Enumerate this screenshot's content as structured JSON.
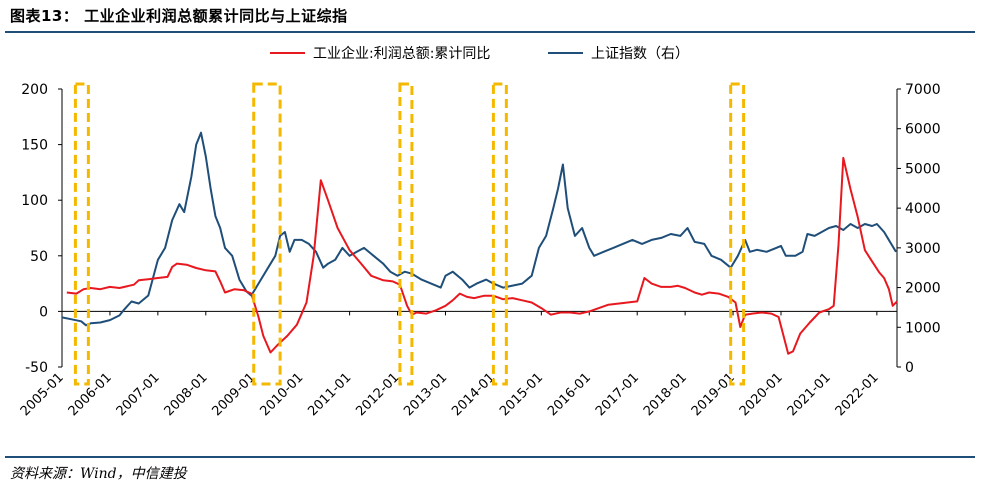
{
  "title": "图表13：  工业企业利润总额累计同比与上证综指",
  "source": "资料来源：Wind，中信建投",
  "chart_data": {
    "type": "line",
    "legend": [
      "工业企业:利润总额:累计同比",
      "上证指数（右）"
    ],
    "legend_position": "top",
    "y_left": {
      "min": -50,
      "max": 200,
      "ticks": [
        -50,
        0,
        50,
        100,
        150,
        200
      ]
    },
    "y_right": {
      "min": 0,
      "max": 7000,
      "ticks": [
        0,
        1000,
        2000,
        3000,
        4000,
        5000,
        6000,
        7000
      ]
    },
    "x_ticks": [
      "2005-01",
      "2006-01",
      "2007-01",
      "2008-01",
      "2009-01",
      "2010-01",
      "2011-01",
      "2012-01",
      "2013-01",
      "2014-01",
      "2015-01",
      "2016-01",
      "2017-01",
      "2018-01",
      "2019-01",
      "2020-01",
      "2021-01",
      "2022-01"
    ],
    "x_range": [
      2005.0,
      2022.42
    ],
    "colors": {
      "profit": "#e8181f",
      "index": "#1f4e79",
      "highlight": "#f5b800"
    },
    "series": [
      {
        "name": "工业企业:利润总额:累计同比",
        "axis": "left",
        "points": [
          [
            2005.1,
            17
          ],
          [
            2005.3,
            16
          ],
          [
            2005.45,
            20
          ],
          [
            2005.6,
            21
          ],
          [
            2005.8,
            20
          ],
          [
            2006.0,
            22
          ],
          [
            2006.2,
            21
          ],
          [
            2006.5,
            24
          ],
          [
            2006.6,
            28
          ],
          [
            2006.8,
            29
          ],
          [
            2007.0,
            30
          ],
          [
            2007.2,
            31
          ],
          [
            2007.3,
            40
          ],
          [
            2007.4,
            43
          ],
          [
            2007.6,
            42
          ],
          [
            2007.8,
            39
          ],
          [
            2008.0,
            37
          ],
          [
            2008.2,
            36
          ],
          [
            2008.3,
            27
          ],
          [
            2008.4,
            17
          ],
          [
            2008.6,
            20
          ],
          [
            2008.8,
            19
          ],
          [
            2008.95,
            16
          ],
          [
            2009.1,
            -5
          ],
          [
            2009.2,
            -22
          ],
          [
            2009.35,
            -37
          ],
          [
            2009.5,
            -30
          ],
          [
            2009.7,
            -22
          ],
          [
            2009.9,
            -12
          ],
          [
            2010.1,
            8
          ],
          [
            2010.25,
            50
          ],
          [
            2010.4,
            118
          ],
          [
            2010.55,
            100
          ],
          [
            2010.75,
            75
          ],
          [
            2011.0,
            55
          ],
          [
            2011.2,
            45
          ],
          [
            2011.45,
            32
          ],
          [
            2011.7,
            28
          ],
          [
            2011.9,
            27
          ],
          [
            2012.05,
            24
          ],
          [
            2012.2,
            5
          ],
          [
            2012.3,
            -3
          ],
          [
            2012.4,
            -1
          ],
          [
            2012.6,
            -2
          ],
          [
            2012.8,
            1
          ],
          [
            2013.0,
            5
          ],
          [
            2013.15,
            10
          ],
          [
            2013.3,
            16
          ],
          [
            2013.45,
            13
          ],
          [
            2013.6,
            12
          ],
          [
            2013.8,
            14
          ],
          [
            2014.0,
            14
          ],
          [
            2014.2,
            11
          ],
          [
            2014.4,
            12
          ],
          [
            2014.6,
            10
          ],
          [
            2014.8,
            8
          ],
          [
            2015.0,
            3
          ],
          [
            2015.2,
            -3
          ],
          [
            2015.4,
            -1
          ],
          [
            2015.6,
            -1
          ],
          [
            2015.8,
            -2
          ],
          [
            2016.0,
            0
          ],
          [
            2016.2,
            3
          ],
          [
            2016.4,
            6
          ],
          [
            2016.6,
            7
          ],
          [
            2016.8,
            8
          ],
          [
            2017.0,
            9
          ],
          [
            2017.15,
            30
          ],
          [
            2017.3,
            25
          ],
          [
            2017.5,
            22
          ],
          [
            2017.7,
            22
          ],
          [
            2017.85,
            23
          ],
          [
            2018.0,
            21
          ],
          [
            2018.2,
            17
          ],
          [
            2018.35,
            15
          ],
          [
            2018.5,
            17
          ],
          [
            2018.7,
            16
          ],
          [
            2018.9,
            13
          ],
          [
            2019.05,
            8
          ],
          [
            2019.15,
            -14
          ],
          [
            2019.25,
            -3
          ],
          [
            2019.4,
            -2
          ],
          [
            2019.6,
            -1
          ],
          [
            2019.8,
            -2
          ],
          [
            2019.95,
            -5
          ],
          [
            2020.15,
            -38
          ],
          [
            2020.25,
            -36
          ],
          [
            2020.4,
            -20
          ],
          [
            2020.6,
            -10
          ],
          [
            2020.8,
            -1
          ],
          [
            2021.0,
            2
          ],
          [
            2021.1,
            5
          ],
          [
            2021.2,
            60
          ],
          [
            2021.3,
            138
          ],
          [
            2021.45,
            110
          ],
          [
            2021.6,
            85
          ],
          [
            2021.75,
            55
          ],
          [
            2021.9,
            45
          ],
          [
            2022.05,
            35
          ],
          [
            2022.15,
            30
          ],
          [
            2022.25,
            20
          ],
          [
            2022.33,
            5
          ],
          [
            2022.42,
            9
          ]
        ]
      },
      {
        "name": "上证指数（右）",
        "axis": "right",
        "points": [
          [
            2005.0,
            1250
          ],
          [
            2005.2,
            1200
          ],
          [
            2005.4,
            1150
          ],
          [
            2005.5,
            1050
          ],
          [
            2005.6,
            1100
          ],
          [
            2005.8,
            1120
          ],
          [
            2006.0,
            1180
          ],
          [
            2006.2,
            1300
          ],
          [
            2006.3,
            1450
          ],
          [
            2006.45,
            1650
          ],
          [
            2006.6,
            1600
          ],
          [
            2006.8,
            1800
          ],
          [
            2007.0,
            2700
          ],
          [
            2007.15,
            3000
          ],
          [
            2007.3,
            3700
          ],
          [
            2007.45,
            4100
          ],
          [
            2007.55,
            3900
          ],
          [
            2007.7,
            4800
          ],
          [
            2007.8,
            5600
          ],
          [
            2007.9,
            5900
          ],
          [
            2008.0,
            5300
          ],
          [
            2008.1,
            4500
          ],
          [
            2008.2,
            3800
          ],
          [
            2008.3,
            3500
          ],
          [
            2008.4,
            3000
          ],
          [
            2008.55,
            2800
          ],
          [
            2008.7,
            2200
          ],
          [
            2008.85,
            1900
          ],
          [
            2008.95,
            1800
          ],
          [
            2009.15,
            2200
          ],
          [
            2009.3,
            2500
          ],
          [
            2009.45,
            2800
          ],
          [
            2009.55,
            3300
          ],
          [
            2009.65,
            3400
          ],
          [
            2009.75,
            2900
          ],
          [
            2009.85,
            3200
          ],
          [
            2010.0,
            3200
          ],
          [
            2010.15,
            3100
          ],
          [
            2010.3,
            2900
          ],
          [
            2010.45,
            2500
          ],
          [
            2010.55,
            2600
          ],
          [
            2010.7,
            2700
          ],
          [
            2010.85,
            3000
          ],
          [
            2011.0,
            2800
          ],
          [
            2011.15,
            2900
          ],
          [
            2011.3,
            3000
          ],
          [
            2011.5,
            2800
          ],
          [
            2011.7,
            2600
          ],
          [
            2011.85,
            2400
          ],
          [
            2012.0,
            2300
          ],
          [
            2012.15,
            2400
          ],
          [
            2012.3,
            2350
          ],
          [
            2012.5,
            2200
          ],
          [
            2012.7,
            2100
          ],
          [
            2012.9,
            2000
          ],
          [
            2013.0,
            2300
          ],
          [
            2013.15,
            2400
          ],
          [
            2013.35,
            2200
          ],
          [
            2013.5,
            2000
          ],
          [
            2013.65,
            2100
          ],
          [
            2013.85,
            2200
          ],
          [
            2014.0,
            2100
          ],
          [
            2014.2,
            2000
          ],
          [
            2014.4,
            2050
          ],
          [
            2014.6,
            2100
          ],
          [
            2014.8,
            2300
          ],
          [
            2014.95,
            3000
          ],
          [
            2015.1,
            3300
          ],
          [
            2015.25,
            4000
          ],
          [
            2015.35,
            4500
          ],
          [
            2015.45,
            5100
          ],
          [
            2015.55,
            4000
          ],
          [
            2015.7,
            3300
          ],
          [
            2015.85,
            3500
          ],
          [
            2016.0,
            3000
          ],
          [
            2016.1,
            2800
          ],
          [
            2016.3,
            2900
          ],
          [
            2016.5,
            3000
          ],
          [
            2016.7,
            3100
          ],
          [
            2016.9,
            3200
          ],
          [
            2017.1,
            3100
          ],
          [
            2017.3,
            3200
          ],
          [
            2017.5,
            3250
          ],
          [
            2017.7,
            3350
          ],
          [
            2017.9,
            3300
          ],
          [
            2018.05,
            3500
          ],
          [
            2018.2,
            3150
          ],
          [
            2018.4,
            3100
          ],
          [
            2018.55,
            2800
          ],
          [
            2018.75,
            2700
          ],
          [
            2018.95,
            2500
          ],
          [
            2019.1,
            2800
          ],
          [
            2019.25,
            3200
          ],
          [
            2019.35,
            2900
          ],
          [
            2019.5,
            2950
          ],
          [
            2019.7,
            2900
          ],
          [
            2019.9,
            3000
          ],
          [
            2020.0,
            3050
          ],
          [
            2020.1,
            2800
          ],
          [
            2020.3,
            2800
          ],
          [
            2020.45,
            2900
          ],
          [
            2020.55,
            3350
          ],
          [
            2020.7,
            3300
          ],
          [
            2020.85,
            3400
          ],
          [
            2021.0,
            3500
          ],
          [
            2021.15,
            3550
          ],
          [
            2021.3,
            3450
          ],
          [
            2021.45,
            3600
          ],
          [
            2021.6,
            3500
          ],
          [
            2021.75,
            3600
          ],
          [
            2021.9,
            3550
          ],
          [
            2022.0,
            3600
          ],
          [
            2022.15,
            3400
          ],
          [
            2022.3,
            3100
          ],
          [
            2022.4,
            2900
          ]
        ]
      }
    ],
    "highlight_periods": [
      [
        2005.28,
        2005.55
      ],
      [
        2009.0,
        2009.55
      ],
      [
        2012.05,
        2012.3
      ],
      [
        2014.0,
        2014.27
      ],
      [
        2018.95,
        2019.22
      ]
    ]
  }
}
